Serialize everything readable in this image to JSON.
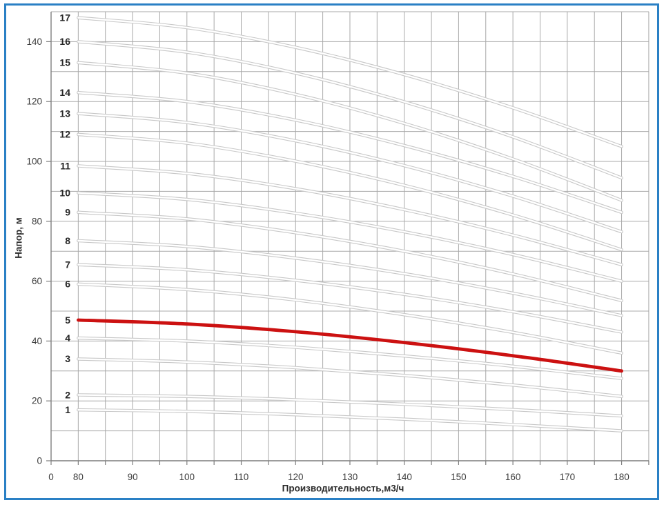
{
  "frame": {
    "border_color": "#2a80c5"
  },
  "chart_data": {
    "type": "line",
    "title": "",
    "xlabel": "Производительность,м3/ч",
    "ylabel": "Напор, м",
    "x_tick_labels": [
      "0",
      "80",
      "90",
      "100",
      "110",
      "120",
      "130",
      "140",
      "150",
      "160",
      "170",
      "180"
    ],
    "x_grid_step": 5,
    "x_data_range": [
      80,
      180
    ],
    "x_axis_break_after_zero": true,
    "ylim": [
      0,
      150
    ],
    "y_grid_step": 10,
    "y_tick_labels": [
      "0",
      "20",
      "40",
      "60",
      "80",
      "100",
      "120",
      "140"
    ],
    "grid": true,
    "legend": "none",
    "colors": {
      "grid": "#a8a8a8",
      "axis": "#7d7d7d",
      "curve_gray_edge": "#c8c8c8",
      "curve_gray_core": "#ffffff",
      "highlight_red": "#cc1111",
      "tick_text": "#3c3c3c",
      "label_text": "#262626",
      "frame_blue": "#2a80c5"
    },
    "series": [
      {
        "label": "1",
        "highlighted": false,
        "points": [
          [
            80,
            17
          ],
          [
            100,
            16.5
          ],
          [
            120,
            15.4
          ],
          [
            140,
            13.9
          ],
          [
            160,
            12.1
          ],
          [
            180,
            10
          ]
        ]
      },
      {
        "label": "2",
        "highlighted": false,
        "points": [
          [
            80,
            22
          ],
          [
            100,
            21.5
          ],
          [
            120,
            20.4
          ],
          [
            140,
            18.9
          ],
          [
            160,
            17.1
          ],
          [
            180,
            15
          ]
        ]
      },
      {
        "label": "3",
        "highlighted": false,
        "points": [
          [
            80,
            34
          ],
          [
            100,
            33
          ],
          [
            120,
            31.1
          ],
          [
            140,
            28.5
          ],
          [
            160,
            25.3
          ],
          [
            180,
            21.5
          ]
        ]
      },
      {
        "label": "4",
        "highlighted": false,
        "points": [
          [
            80,
            41
          ],
          [
            100,
            40
          ],
          [
            120,
            37.9
          ],
          [
            140,
            35
          ],
          [
            160,
            31.6
          ],
          [
            180,
            27.5
          ]
        ]
      },
      {
        "label": "5",
        "highlighted": true,
        "points": [
          [
            80,
            47
          ],
          [
            100,
            45.7
          ],
          [
            120,
            43.1
          ],
          [
            140,
            39.5
          ],
          [
            160,
            35.1
          ],
          [
            180,
            30
          ]
        ]
      },
      {
        "label": "6",
        "highlighted": false,
        "points": [
          [
            80,
            59
          ],
          [
            100,
            57.2
          ],
          [
            120,
            53.7
          ],
          [
            140,
            48.8
          ],
          [
            160,
            42.9
          ],
          [
            180,
            36
          ]
        ]
      },
      {
        "label": "7",
        "highlighted": false,
        "points": [
          [
            80,
            65.5
          ],
          [
            100,
            63.8
          ],
          [
            120,
            60.3
          ],
          [
            140,
            55.6
          ],
          [
            160,
            49.8
          ],
          [
            180,
            43
          ]
        ]
      },
      {
        "label": "8",
        "highlighted": false,
        "points": [
          [
            80,
            73.5
          ],
          [
            100,
            71.6
          ],
          [
            120,
            67.7
          ],
          [
            140,
            62.5
          ],
          [
            160,
            56
          ],
          [
            180,
            48.5
          ]
        ]
      },
      {
        "label": "9",
        "highlighted": false,
        "points": [
          [
            80,
            83
          ],
          [
            100,
            80.8
          ],
          [
            120,
            76.2
          ],
          [
            140,
            70
          ],
          [
            160,
            62.4
          ],
          [
            180,
            53.5
          ]
        ]
      },
      {
        "label": "10",
        "highlighted": false,
        "points": [
          [
            80,
            89.5
          ],
          [
            100,
            87.3
          ],
          [
            120,
            82.7
          ],
          [
            140,
            76.5
          ],
          [
            160,
            68.9
          ],
          [
            180,
            60
          ]
        ]
      },
      {
        "label": "11",
        "highlighted": false,
        "points": [
          [
            80,
            98.5
          ],
          [
            100,
            96
          ],
          [
            120,
            90.9
          ],
          [
            140,
            83.9
          ],
          [
            160,
            75.4
          ],
          [
            180,
            65.5
          ]
        ]
      },
      {
        "label": "12",
        "highlighted": false,
        "points": [
          [
            80,
            109
          ],
          [
            100,
            106.1
          ],
          [
            120,
            100.1
          ],
          [
            140,
            92
          ],
          [
            160,
            82.1
          ],
          [
            180,
            70.5
          ]
        ]
      },
      {
        "label": "13",
        "highlighted": false,
        "points": [
          [
            80,
            116
          ],
          [
            100,
            113
          ],
          [
            120,
            106.9
          ],
          [
            140,
            98.6
          ],
          [
            160,
            88.4
          ],
          [
            180,
            76.5
          ]
        ]
      },
      {
        "label": "14",
        "highlighted": false,
        "points": [
          [
            80,
            123
          ],
          [
            100,
            120
          ],
          [
            120,
            113.8
          ],
          [
            140,
            105.3
          ],
          [
            160,
            95
          ],
          [
            180,
            83
          ]
        ]
      },
      {
        "label": "15",
        "highlighted": false,
        "points": [
          [
            80,
            133
          ],
          [
            100,
            129.5
          ],
          [
            120,
            122.4
          ],
          [
            140,
            112.7
          ],
          [
            160,
            100.8
          ],
          [
            180,
            87
          ]
        ]
      },
      {
        "label": "16",
        "highlighted": false,
        "points": [
          [
            80,
            140
          ],
          [
            100,
            136.5
          ],
          [
            120,
            129.5
          ],
          [
            140,
            119.9
          ],
          [
            160,
            108.2
          ],
          [
            180,
            94.5
          ]
        ]
      },
      {
        "label": "17",
        "highlighted": false,
        "points": [
          [
            80,
            148
          ],
          [
            100,
            144.7
          ],
          [
            120,
            138.1
          ],
          [
            140,
            129
          ],
          [
            160,
            117.9
          ],
          [
            180,
            105
          ]
        ]
      }
    ]
  }
}
